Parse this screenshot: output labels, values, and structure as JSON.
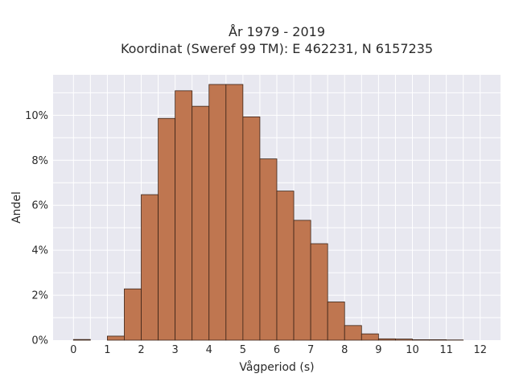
{
  "chart_data": {
    "type": "bar",
    "title_line1": "År 1979 - 2019",
    "title_line2": "Koordinat (Sweref 99 TM): E 462231, N 6157235",
    "xlabel": "Vågperiod (s)",
    "ylabel": "Andel",
    "xlim": [
      -0.6,
      12.6
    ],
    "ylim": [
      0,
      11.8
    ],
    "x_ticks": [
      0,
      1,
      2,
      3,
      4,
      5,
      6,
      7,
      8,
      9,
      10,
      11,
      12
    ],
    "x_tick_labels": [
      "0",
      "1",
      "2",
      "3",
      "4",
      "5",
      "6",
      "7",
      "8",
      "9",
      "10",
      "11",
      "12"
    ],
    "y_ticks": [
      0,
      2,
      4,
      6,
      8,
      10
    ],
    "y_tick_labels": [
      "0%",
      "2%",
      "4%",
      "6%",
      "8%",
      "10%"
    ],
    "bin_width": 0.5,
    "bins": [
      {
        "x0": 0.0,
        "value": 0.03
      },
      {
        "x0": 0.5,
        "value": 0.0
      },
      {
        "x0": 1.0,
        "value": 0.18
      },
      {
        "x0": 1.5,
        "value": 2.28
      },
      {
        "x0": 2.0,
        "value": 6.47
      },
      {
        "x0": 2.5,
        "value": 9.86
      },
      {
        "x0": 3.0,
        "value": 11.09
      },
      {
        "x0": 3.5,
        "value": 10.4
      },
      {
        "x0": 4.0,
        "value": 11.37
      },
      {
        "x0": 4.5,
        "value": 11.37
      },
      {
        "x0": 5.0,
        "value": 9.93
      },
      {
        "x0": 5.5,
        "value": 8.06
      },
      {
        "x0": 6.0,
        "value": 6.63
      },
      {
        "x0": 6.5,
        "value": 5.33
      },
      {
        "x0": 7.0,
        "value": 4.29
      },
      {
        "x0": 7.5,
        "value": 1.7
      },
      {
        "x0": 8.0,
        "value": 0.65
      },
      {
        "x0": 8.5,
        "value": 0.28
      },
      {
        "x0": 9.0,
        "value": 0.06
      },
      {
        "x0": 9.5,
        "value": 0.05
      },
      {
        "x0": 10.0,
        "value": 0.02
      },
      {
        "x0": 10.5,
        "value": 0.02
      },
      {
        "x0": 11.0,
        "value": 0.01
      }
    ],
    "grid": true,
    "bar_color": "#bf7650",
    "edge_color": "#3b2418",
    "plot_background": "#e8e8f0"
  }
}
